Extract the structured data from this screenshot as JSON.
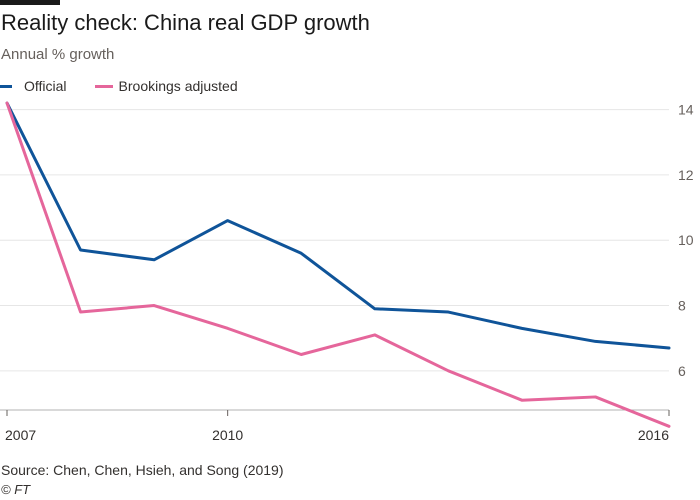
{
  "title": "Reality check: China real GDP growth",
  "subtitle": "Annual % growth",
  "source": "Source: Chen, Chen, Hsieh, and Song (2019)",
  "credit": "© FT",
  "colors": {
    "official": "#0f5499",
    "adjusted": "#e5669b",
    "grid": "#e6e6e6",
    "axis": "#66605c"
  },
  "chart_data": {
    "type": "line",
    "title": "Reality check: China real GDP growth",
    "ylabel": "Annual % growth",
    "xlabel": "",
    "x": [
      2007,
      2008,
      2009,
      2010,
      2011,
      2012,
      2013,
      2014,
      2015,
      2016
    ],
    "xticks": [
      2007,
      2010,
      2016
    ],
    "xlim": [
      2007,
      2016
    ],
    "yticks": [
      6,
      8,
      10,
      12,
      14
    ],
    "ylim": [
      4.8,
      14.6
    ],
    "grid": true,
    "yaxis_side": "right",
    "legend": "top-left",
    "series": [
      {
        "name": "Official",
        "color": "#0f5499",
        "values": [
          14.2,
          9.7,
          9.4,
          10.6,
          9.6,
          7.9,
          7.8,
          7.3,
          6.9,
          6.7
        ]
      },
      {
        "name": "Brookings adjusted",
        "color": "#e5669b",
        "values": [
          14.2,
          7.8,
          8.0,
          7.3,
          6.5,
          7.1,
          6.0,
          5.1,
          5.2,
          4.3
        ]
      }
    ]
  }
}
